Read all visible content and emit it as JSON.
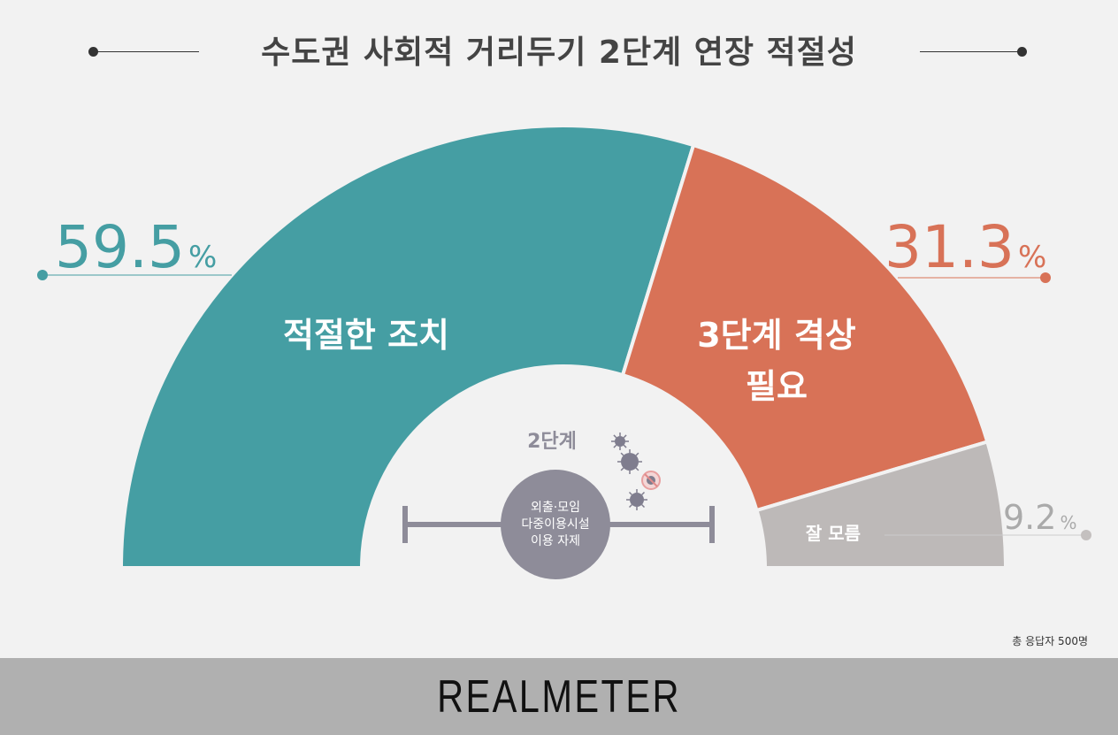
{
  "chart_data": {
    "type": "pie",
    "variant": "semi-donut",
    "title": "수도권 사회적 거리두기 2단계 연장 적절성",
    "categories": [
      "적절한 조치",
      "3단계 격상 필요",
      "잘 모름"
    ],
    "values": [
      59.5,
      31.3,
      9.2
    ],
    "value_labels": [
      "59.5",
      "31.3",
      "9.2"
    ],
    "unit": "%",
    "colors": [
      "#459ea3",
      "#d87257",
      "#bdb9b8"
    ],
    "center": {
      "stage_label": "2단계",
      "circle_lines": [
        "외출·모임",
        "다중이용시설",
        "이용 자제"
      ]
    },
    "note": "총 응답자 500명"
  },
  "brand": "REALMETER"
}
